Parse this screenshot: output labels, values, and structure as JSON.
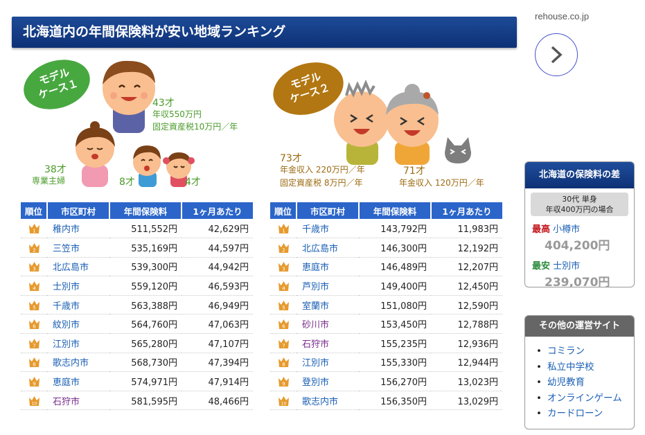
{
  "header": {
    "title": "北海道内の年間保険料が安い地域ランキング"
  },
  "site": {
    "domain": "rehouse.co.jp"
  },
  "next_icon": "chevron-right-icon",
  "case1": {
    "badge_line1": "モデル",
    "badge_line2": "ケース１",
    "father_age": "43才",
    "father_income": "年収550万円",
    "property_tax": "固定資産税10万円／年",
    "mother_age": "38才",
    "mother_job": "専業主婦",
    "child1_age": "8才",
    "child2_age": "4才"
  },
  "case2": {
    "badge_line1": "モデル",
    "badge_line2": "ケース２",
    "husband_age": "73才",
    "husband_pension": "年金収入 220万円／年",
    "property_tax": "固定資産税 8万円／年",
    "wife_age": "71才",
    "wife_pension": "年金収入 120万円／年"
  },
  "table_headers": [
    "順位",
    "市区町村",
    "年間保険料",
    "1ヶ月あたり"
  ],
  "table1": [
    {
      "rank": "1",
      "city": "稚内市",
      "annual": "511,552円",
      "monthly": "42,629円"
    },
    {
      "rank": "2",
      "city": "三笠市",
      "annual": "535,169円",
      "monthly": "44,597円"
    },
    {
      "rank": "3",
      "city": "北広島市",
      "annual": "539,300円",
      "monthly": "44,942円"
    },
    {
      "rank": "4",
      "city": "士別市",
      "annual": "559,120円",
      "monthly": "46,593円"
    },
    {
      "rank": "5",
      "city": "千歳市",
      "annual": "563,388円",
      "monthly": "46,949円"
    },
    {
      "rank": "6",
      "city": "紋別市",
      "annual": "564,760円",
      "monthly": "47,063円"
    },
    {
      "rank": "7",
      "city": "江別市",
      "annual": "565,280円",
      "monthly": "47,107円"
    },
    {
      "rank": "8",
      "city": "歌志内市",
      "annual": "568,730円",
      "monthly": "47,394円"
    },
    {
      "rank": "9",
      "city": "恵庭市",
      "annual": "574,971円",
      "monthly": "47,914円"
    },
    {
      "rank": "10",
      "city": "石狩市",
      "annual": "581,595円",
      "monthly": "48,466円"
    }
  ],
  "table2": [
    {
      "rank": "1",
      "city": "千歳市",
      "annual": "143,792円",
      "monthly": "11,983円"
    },
    {
      "rank": "2",
      "city": "北広島市",
      "annual": "146,300円",
      "monthly": "12,192円"
    },
    {
      "rank": "3",
      "city": "恵庭市",
      "annual": "146,489円",
      "monthly": "12,207円"
    },
    {
      "rank": "4",
      "city": "芦別市",
      "annual": "149,400円",
      "monthly": "12,450円"
    },
    {
      "rank": "5",
      "city": "室蘭市",
      "annual": "151,080円",
      "monthly": "12,590円"
    },
    {
      "rank": "6",
      "city": "砂川市",
      "annual": "153,450円",
      "monthly": "12,788円"
    },
    {
      "rank": "7",
      "city": "石狩市",
      "annual": "155,235円",
      "monthly": "12,936円"
    },
    {
      "rank": "8",
      "city": "江別市",
      "annual": "155,330円",
      "monthly": "12,944円"
    },
    {
      "rank": "9",
      "city": "登別市",
      "annual": "156,270円",
      "monthly": "13,023円"
    },
    {
      "rank": "10",
      "city": "歌志内市",
      "annual": "156,350円",
      "monthly": "13,029円"
    }
  ],
  "diff_box": {
    "title": "北海道の保険料の差",
    "condition_line1": "30代 単身",
    "condition_line2": "年収400万円の場合",
    "high_label": "最高",
    "high_city": "小樽市",
    "high_amount": "404,200円",
    "low_label": "最安",
    "low_city": "士別市",
    "low_amount": "239,070円"
  },
  "other_sites": {
    "title": "その他の運営サイト",
    "items": [
      "コミラン",
      "私立中学校",
      "幼児教育",
      "オンラインゲーム",
      "カードローン"
    ]
  },
  "colors": {
    "header_blue": "#0d3176",
    "table_header": "#2b65c9",
    "link": "#1a5fb4",
    "crown": "#e69a2e"
  }
}
